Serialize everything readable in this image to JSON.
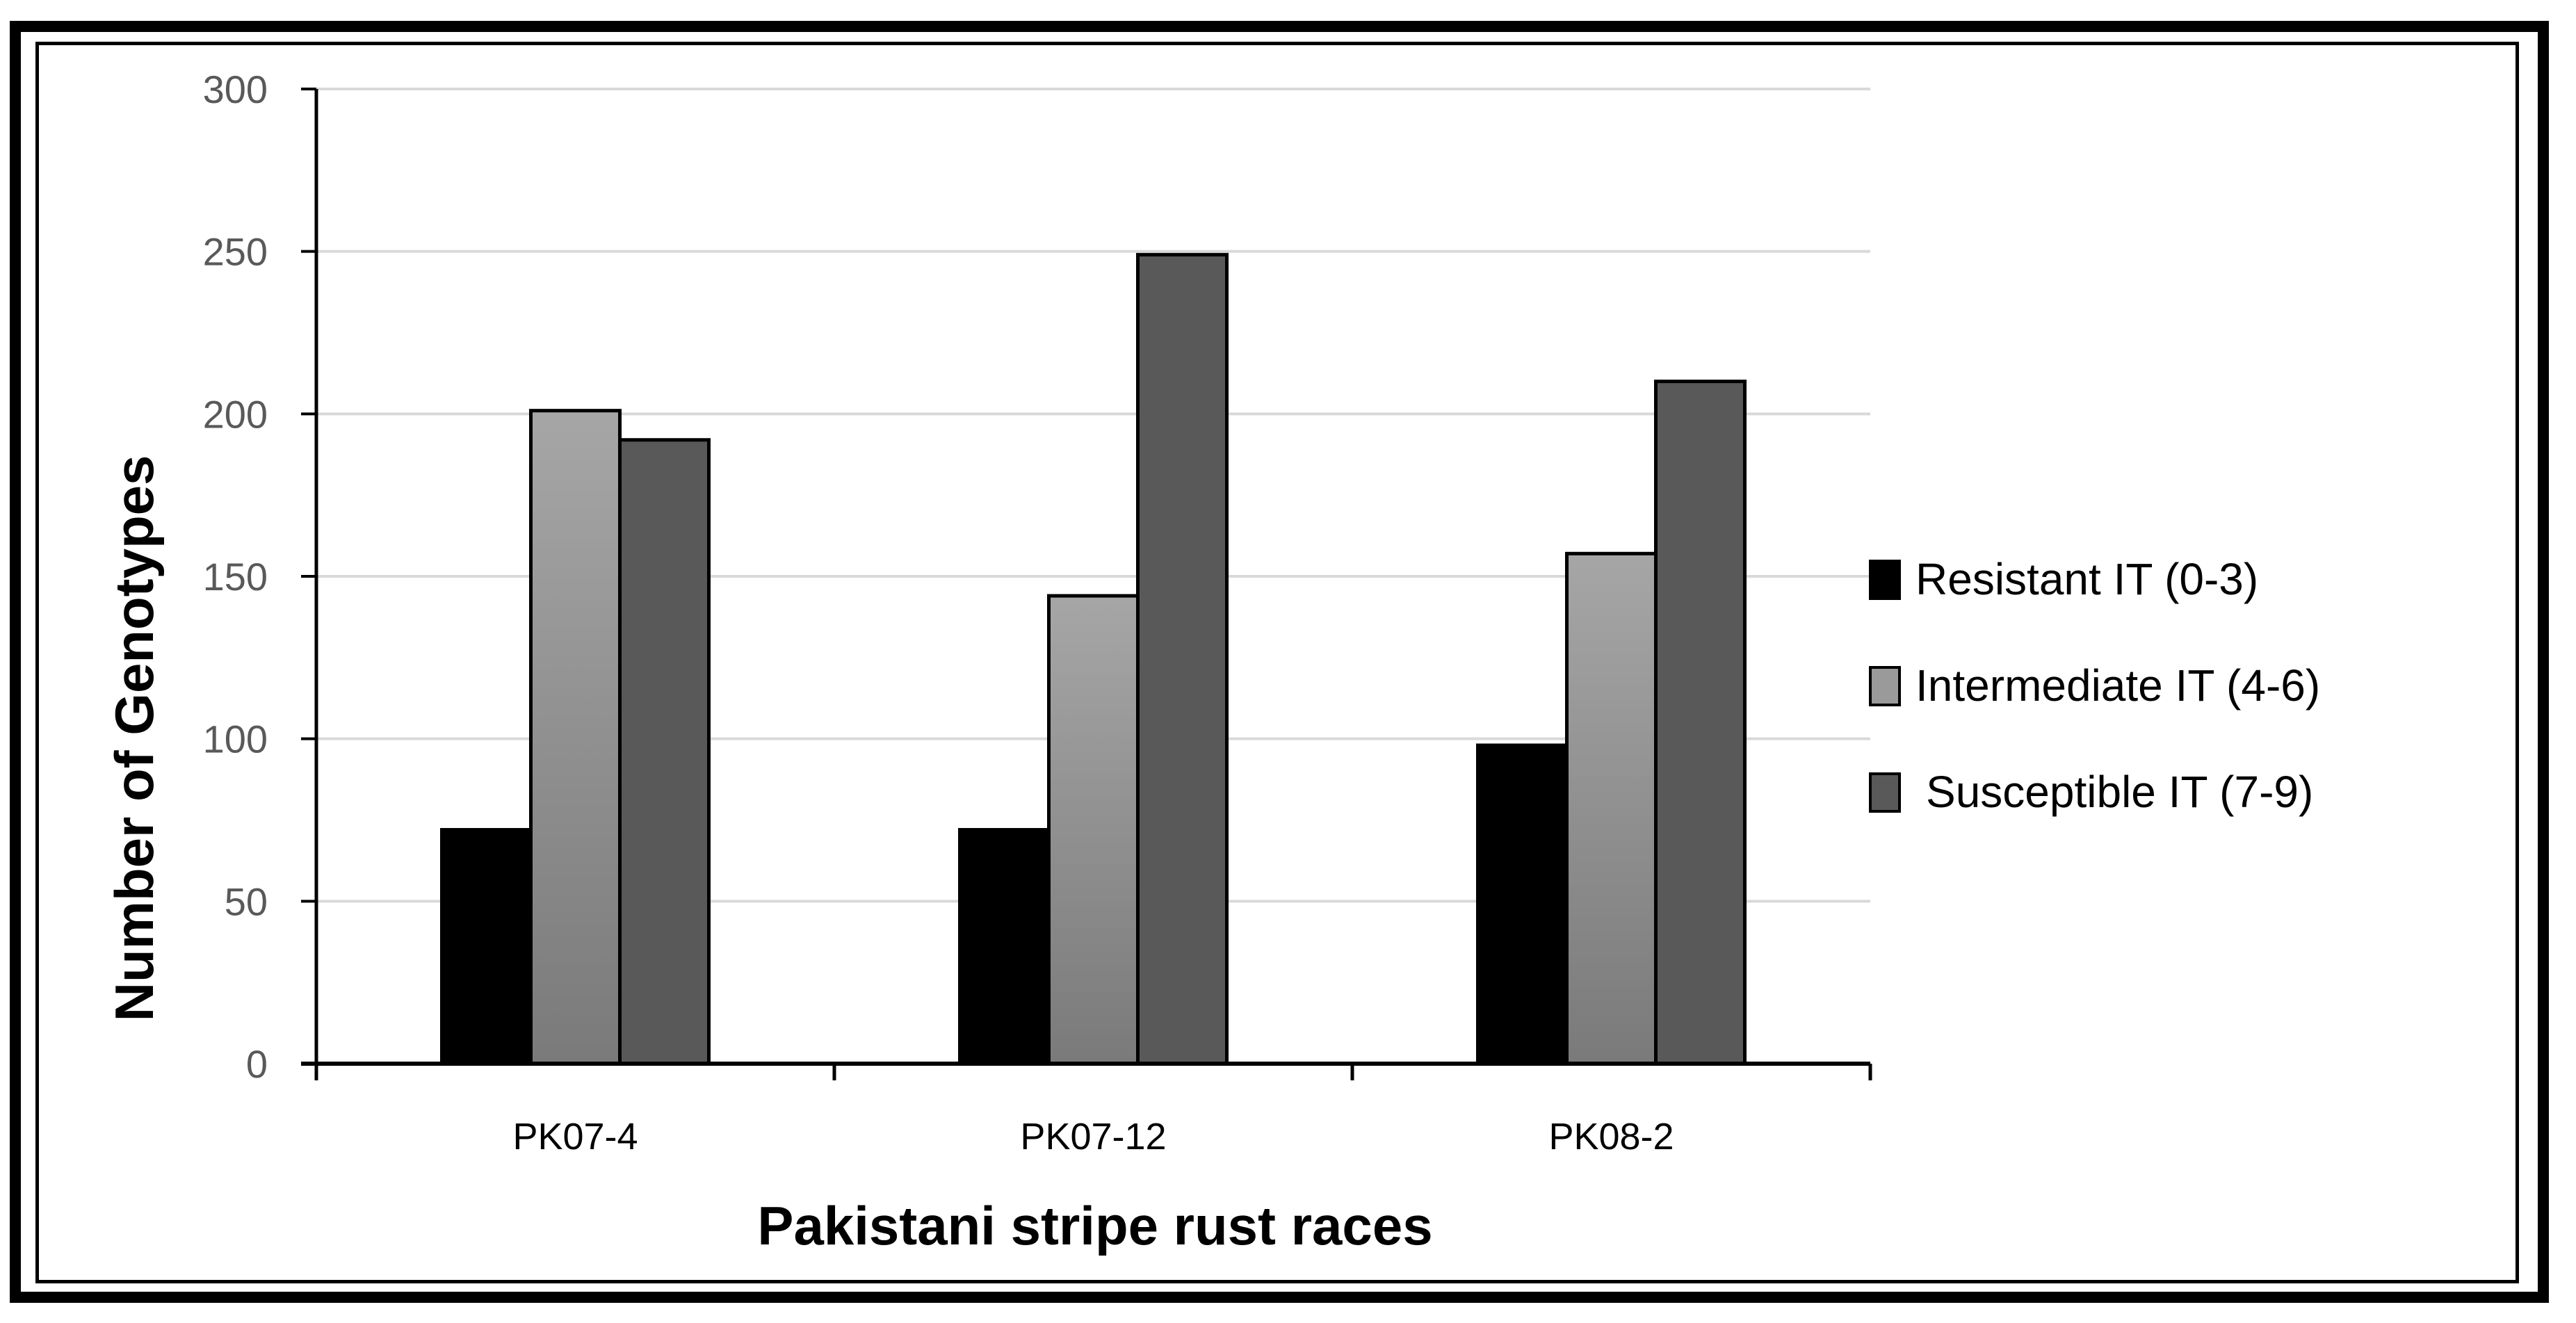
{
  "chart_data": {
    "type": "bar",
    "title": "",
    "xlabel": "Pakistani stripe rust races",
    "ylabel": "Number of Genotypes",
    "categories": [
      "PK07-4",
      "PK07-12",
      "PK08-2"
    ],
    "series": [
      {
        "name": "Resistant IT (0-3)",
        "values": [
          72,
          72,
          98
        ],
        "color": "#000000"
      },
      {
        "name": "Intermediate IT (4-6)",
        "values": [
          201,
          144,
          157
        ],
        "color": "#9a9a9a"
      },
      {
        "name": "Susceptible IT (7-9)",
        "values": [
          192,
          249,
          210
        ],
        "color": "#595959"
      }
    ],
    "ylim": [
      0,
      300
    ],
    "yticks": [
      0,
      50,
      100,
      150,
      200,
      250,
      300
    ],
    "grid": true,
    "legend_position": "right"
  }
}
